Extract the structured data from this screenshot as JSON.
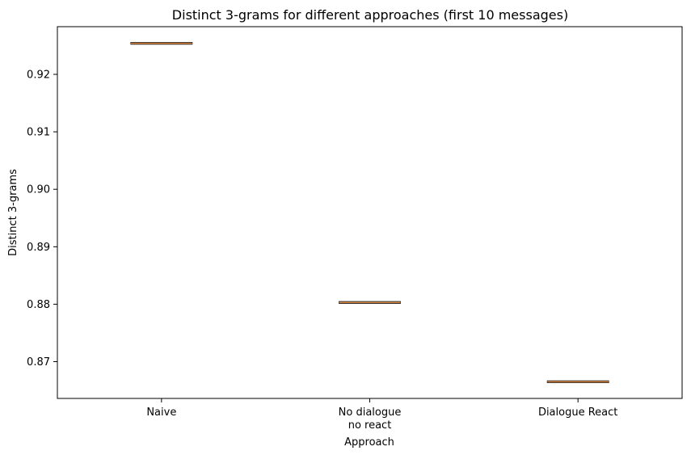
{
  "chart_data": {
    "type": "box",
    "title": "Distinct 3-grams for different approaches (first 10 messages)",
    "xlabel": "Approach",
    "ylabel": "Distinct 3-grams",
    "categories": [
      [
        "Naive"
      ],
      [
        "No dialogue",
        "no react"
      ],
      [
        "Dialogue React"
      ]
    ],
    "values": [
      0.9254,
      0.8803,
      0.8665
    ],
    "yticks": [
      "0.87",
      "0.88",
      "0.89",
      "0.90",
      "0.91",
      "0.92"
    ],
    "ylim": [
      0.8636,
      0.9283
    ],
    "grid": false,
    "colors": {
      "median": "#d9823b",
      "box": "#000000",
      "axis": "#000000"
    }
  }
}
